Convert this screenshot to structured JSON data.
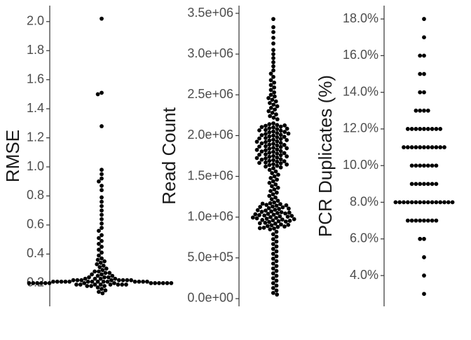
{
  "chart_data": [
    {
      "type": "beeswarm",
      "y_label": "RMSE",
      "color": "#000000",
      "ylim": [
        0.04,
        2.11
      ],
      "yticks": [
        0.2,
        0.4,
        0.6,
        0.8,
        {
          "value": 1,
          "label": "1.0"
        },
        1.2,
        1.4,
        1.6,
        1.8,
        {
          "value": 2,
          "label": "2.0"
        }
      ],
      "values": [
        2.02,
        1.51,
        1.5,
        1.28,
        0.98,
        0.95,
        0.92,
        0.9,
        0.87,
        0.84,
        0.79,
        0.76,
        0.73,
        0.7,
        0.67,
        0.64,
        0.61,
        0.58,
        0.56,
        0.53,
        0.51,
        0.49,
        0.47,
        0.45,
        0.43,
        0.41,
        0.39,
        0.37,
        0.36,
        0.35,
        0.34,
        0.33,
        0.32,
        0.31,
        0.3,
        0.29,
        0.28,
        0.28,
        0.27,
        0.27,
        0.26,
        0.26,
        0.25,
        0.25,
        0.24,
        0.24,
        0.24,
        0.23,
        0.23,
        0.23,
        0.23,
        0.22,
        0.22,
        0.22,
        0.22,
        0.22,
        0.22,
        0.22,
        0.22,
        0.21,
        0.21,
        0.21,
        0.21,
        0.21,
        0.21,
        0.21,
        0.21,
        0.21,
        0.21,
        0.21,
        0.21,
        0.21,
        0.21,
        0.2,
        0.2,
        0.2,
        0.2,
        0.2,
        0.2,
        0.2,
        0.2,
        0.2,
        0.2,
        0.2,
        0.2,
        0.2,
        0.2,
        0.19,
        0.19,
        0.19,
        0.19,
        0.19,
        0.19,
        0.19,
        0.19,
        0.18,
        0.18,
        0.18,
        0.17,
        0.16,
        0.15,
        0.14,
        0.13
      ]
    },
    {
      "type": "beeswarm",
      "y_label": "Read Count",
      "color": "#000000",
      "ylim": [
        -94600,
        3594600
      ],
      "yticks": [
        {
          "value": 0,
          "label": "0.0e+00"
        },
        {
          "value": 500000,
          "label": "5.0e+05"
        },
        {
          "value": 1000000,
          "label": "1.0e+06"
        },
        {
          "value": 1500000,
          "label": "1.5e+06"
        },
        {
          "value": 2000000,
          "label": "2.0e+06"
        },
        {
          "value": 2500000,
          "label": "2.5e+06"
        },
        {
          "value": 3000000,
          "label": "3.0e+06"
        },
        {
          "value": 3500000,
          "label": "3.5e+06"
        }
      ],
      "values": [
        3430000.0,
        3330000.0,
        3270000.0,
        3200000.0,
        3130000.0,
        3050000.0,
        3000000.0,
        2950000.0,
        2900000.0,
        2850000.0,
        2800000.0,
        2760000.0,
        2720000.0,
        2680000.0,
        2650000.0,
        2620000.0,
        2590000.0,
        2560000.0,
        2530000.0,
        2500000.0,
        2480000.0,
        2460000.0,
        2440000.0,
        2420000.0,
        2400000.0,
        2380000.0,
        2360000.0,
        2340000.0,
        2320000.0,
        2300000.0,
        2280000.0,
        2260000.0,
        2240000.0,
        2220000.0,
        2200000.0,
        2150000.0,
        2140000.0,
        2130000.0,
        2120000.0,
        2110000.0,
        2100000.0,
        2090000.0,
        2080000.0,
        2070000.0,
        2060000.0,
        2050000.0,
        2040000.0,
        2030000.0,
        2020000.0,
        2010000.0,
        2000000.0,
        1990000.0,
        1980000.0,
        1970000.0,
        1960000.0,
        1950000.0,
        1940000.0,
        1930000.0,
        1920000.0,
        1910000.0,
        1900000.0,
        1890000.0,
        1880000.0,
        1870000.0,
        1860000.0,
        1850000.0,
        1840000.0,
        1830000.0,
        1820000.0,
        1810000.0,
        1800000.0,
        1790000.0,
        1780000.0,
        1770000.0,
        1760000.0,
        1750000.0,
        1740000.0,
        1730000.0,
        1720000.0,
        1710000.0,
        1700000.0,
        1690000.0,
        1680000.0,
        1670000.0,
        1660000.0,
        1650000.0,
        1640000.0,
        1630000.0,
        1620000.0,
        1610000.0,
        1600000.0,
        2125000.0,
        2105000.0,
        2085000.0,
        2065000.0,
        2045000.0,
        2025000.0,
        2005000.0,
        1985000.0,
        1965000.0,
        1945000.0,
        1925000.0,
        1905000.0,
        1885000.0,
        1865000.0,
        1845000.0,
        1825000.0,
        1805000.0,
        1785000.0,
        1765000.0,
        1745000.0,
        1725000.0,
        1705000.0,
        1685000.0,
        1665000.0,
        1645000.0,
        1580000.0,
        1560000.0,
        1540000.0,
        1520000.0,
        1500000.0,
        1480000.0,
        1460000.0,
        1440000.0,
        1420000.0,
        1400000.0,
        1380000.0,
        1360000.0,
        1340000.0,
        1320000.0,
        1300000.0,
        1280000.0,
        1260000.0,
        1240000.0,
        1220000.0,
        1200000.0,
        1180000.0,
        1170000.0,
        1160000.0,
        1150000.0,
        1140000.0,
        1130000.0,
        1120000.0,
        1110000.0,
        1100000.0,
        1090000.0,
        1080000.0,
        1070000.0,
        1060000.0,
        1050000.0,
        1040000.0,
        1030000.0,
        1020000.0,
        1010000.0,
        1000000.0,
        990000.0,
        980000.0,
        970000.0,
        960000.0,
        950000.0,
        940000.0,
        930000.0,
        920000.0,
        910000.0,
        900000.0,
        890000.0,
        880000.0,
        870000.0,
        860000.0,
        850000.0,
        1165000.0,
        1145000.0,
        1125000.0,
        1105000.0,
        1085000.0,
        1065000.0,
        1045000.0,
        1025000.0,
        1005000.0,
        985000.0,
        965000.0,
        945000.0,
        925000.0,
        905000.0,
        885000.0,
        865000.0,
        1055000.0,
        1035000.0,
        1015000.0,
        995000.0,
        975000.0,
        955000.0,
        820000.0,
        790000.0,
        760000.0,
        730000.0,
        700000.0,
        670000.0,
        640000.0,
        610000.0,
        580000.0,
        550000.0,
        520000.0,
        490000.0,
        460000.0,
        430000.0,
        400000.0,
        370000.0,
        340000.0,
        310000.0,
        280000.0,
        250000.0,
        220000.0,
        190000.0,
        160000.0,
        130000.0,
        100000.0,
        70000.0,
        50000.0
      ]
    },
    {
      "type": "beeswarm",
      "y_label": "PCR Duplicates (%)",
      "color": "#000000",
      "ylim": [
        2.32,
        18.73
      ],
      "yticks": [
        {
          "value": 4,
          "label": "4.0%"
        },
        {
          "value": 6,
          "label": "6.0%"
        },
        {
          "value": 8,
          "label": "8.0%"
        },
        {
          "value": 10,
          "label": "10.0%"
        },
        {
          "value": 12,
          "label": "12.0%"
        },
        {
          "value": 14,
          "label": "14.0%"
        },
        {
          "value": 16,
          "label": "16.0%"
        },
        {
          "value": 18,
          "label": "18.0%"
        }
      ],
      "values": [
        18,
        17,
        16,
        16,
        15,
        15,
        14,
        14,
        13,
        13,
        13,
        13,
        12,
        12,
        12,
        12,
        12,
        12,
        12,
        12,
        12,
        11,
        11,
        11,
        11,
        11,
        11,
        11,
        11,
        11,
        11,
        11,
        10,
        10,
        10,
        10,
        10,
        10,
        10,
        9,
        9,
        9,
        9,
        9,
        9,
        9,
        8,
        8,
        8,
        8,
        8,
        8,
        8,
        8,
        8,
        8,
        8,
        8,
        8,
        8,
        8,
        7,
        7,
        7,
        7,
        7,
        7,
        7,
        7,
        6,
        6,
        5,
        4,
        3
      ]
    }
  ]
}
